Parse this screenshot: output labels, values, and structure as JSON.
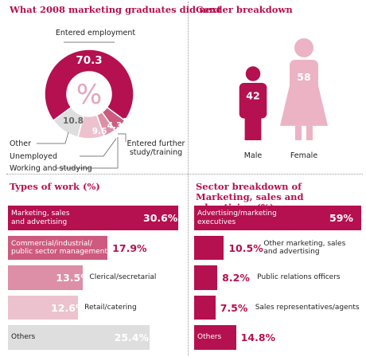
{
  "panels": {
    "graduates": {
      "title": "What 2008 marketing graduates did next"
    },
    "gender": {
      "title": "Gender breakdown"
    },
    "types": {
      "title": "Types of work (%)"
    },
    "sector": {
      "title": "Sector breakdown of Marketing, sales and advertising (%)"
    }
  },
  "colors": {
    "accent": "#b5104f",
    "shades": [
      "#b5104f",
      "#cd5b80",
      "#dd8fa7",
      "#ecc2cf",
      "#dedede"
    ]
  },
  "chart_data": [
    {
      "type": "pie",
      "title": "What 2008 marketing graduates did next",
      "center_label": "%",
      "slices": [
        {
          "label": "Entered employment",
          "value": 70.3,
          "color": "#b5104f"
        },
        {
          "label": "Entered further study/training",
          "value": 5,
          "color": "#cd5b80"
        },
        {
          "label": "Working and studying",
          "value": 4.3,
          "color": "#dd8fa7"
        },
        {
          "label": "Unemployed",
          "value": 9.6,
          "color": "#ecc2cf"
        },
        {
          "label": "Other",
          "value": 10.8,
          "color": "#dedede"
        }
      ]
    },
    {
      "type": "bar",
      "title": "Gender breakdown",
      "categories": [
        "Male",
        "Female"
      ],
      "values": [
        42,
        58
      ],
      "colors": [
        "#b5104f",
        "#ecb3c4"
      ]
    },
    {
      "type": "bar",
      "title": "Types of work (%)",
      "categories": [
        "Marketing, sales and advertising",
        "Commercial/industrial/ public sector management",
        "Clerical/secretarial",
        "Retail/catering",
        "Others"
      ],
      "values": [
        30.6,
        17.9,
        13.5,
        12.6,
        25.4
      ],
      "value_labels": [
        "30.6%",
        "17.9%",
        "13.5%",
        "12.6%",
        "25.4%"
      ]
    },
    {
      "type": "bar",
      "title": "Sector breakdown of Marketing, sales and advertising (%)",
      "categories": [
        "Advertising/marketing executives",
        "Other marketing, sales and advertising",
        "Public relations officers",
        "Sales representatives/agents",
        "Others"
      ],
      "values": [
        59,
        10.5,
        8.2,
        7.5,
        14.8
      ],
      "value_labels": [
        "59%",
        "10.5%",
        "8.2%",
        "7.5%",
        "14.8%"
      ]
    }
  ]
}
